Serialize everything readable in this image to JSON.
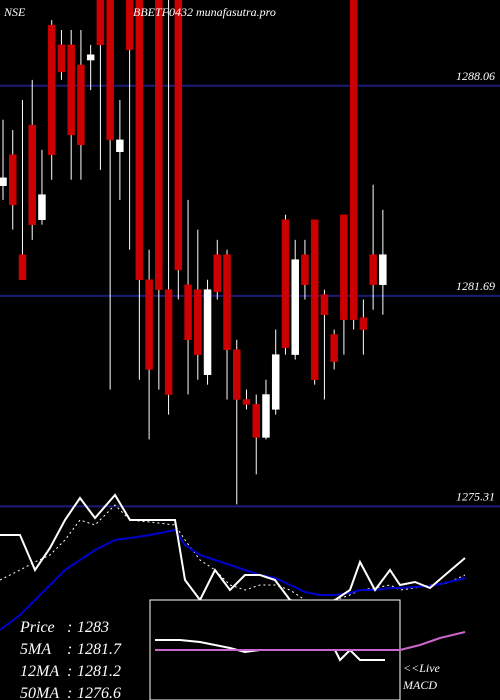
{
  "chart_data": [
    {
      "type": "candlestick",
      "exchange": "NSE",
      "title": "BBETF0432 munafasutra.pro",
      "ylim": [
        1275.2,
        1290.66
      ],
      "yticks": [
        1288.06,
        1281.69,
        1275.31
      ],
      "grid": true,
      "up_color": "#ffffff",
      "down_color": "#cc0000",
      "grid_color": "#1c1c78",
      "open": [
        1285.03,
        1285.97,
        1282.94,
        1286.87,
        1284.0,
        1289.9,
        1289.3,
        1289.3,
        1288.69,
        1288.84,
        1290.66,
        1290.66,
        1286.06,
        1290.66,
        1290.66,
        1282.18,
        1290.66,
        1281.88,
        1290.66,
        1282.03,
        1281.88,
        1279.3,
        1282.94,
        1282.94,
        1280.06,
        1278.55,
        1278.4,
        1277.4,
        1278.25,
        1284.0,
        1279.91,
        1282.94,
        1284.0,
        1281.73,
        1280.52,
        1284.15,
        1290.66,
        1281.03,
        1282.94,
        1282.03
      ],
      "high": [
        1287.03,
        1286.72,
        1287.63,
        1288.24,
        1286.12,
        1290.05,
        1289.75,
        1289.75,
        1289.75,
        1289.3,
        1290.66,
        1290.66,
        1287.63,
        1290.66,
        1290.66,
        1283.09,
        1290.66,
        1290.66,
        1290.66,
        1284.6,
        1283.7,
        1282.18,
        1283.39,
        1283.09,
        1280.36,
        1278.85,
        1278.7,
        1279.15,
        1280.67,
        1284.15,
        1283.39,
        1283.39,
        1284.0,
        1281.88,
        1280.67,
        1284.15,
        1290.66,
        1281.58,
        1285.06,
        1284.3
      ],
      "low": [
        1284.6,
        1283.7,
        1282.18,
        1283.39,
        1283.85,
        1285.21,
        1288.24,
        1285.21,
        1285.21,
        1287.93,
        1285.51,
        1278.85,
        1284.6,
        1283.09,
        1279.15,
        1277.34,
        1278.85,
        1278.09,
        1281.58,
        1278.7,
        1279.15,
        1279.0,
        1281.58,
        1278.55,
        1275.37,
        1278.25,
        1276.28,
        1277.34,
        1278.09,
        1279.91,
        1279.76,
        1281.58,
        1279.0,
        1278.55,
        1279.46,
        1279.91,
        1280.67,
        1279.91,
        1281.27,
        1281.12
      ],
      "close": [
        1285.27,
        1284.45,
        1282.18,
        1283.85,
        1284.76,
        1285.97,
        1288.48,
        1286.57,
        1286.27,
        1289.0,
        1289.3,
        1286.42,
        1286.42,
        1289.15,
        1282.18,
        1279.46,
        1281.88,
        1278.7,
        1282.48,
        1280.36,
        1279.91,
        1281.88,
        1281.82,
        1280.06,
        1278.55,
        1278.4,
        1277.4,
        1278.7,
        1279.91,
        1280.12,
        1282.79,
        1282.03,
        1279.15,
        1281.12,
        1279.7,
        1280.97,
        1280.97,
        1280.67,
        1282.03,
        1282.94
      ]
    },
    {
      "type": "line",
      "xlim": [
        0,
        500
      ],
      "ylim": [
        0,
        210
      ],
      "x": [
        0,
        20,
        35,
        50,
        65,
        80,
        95,
        115,
        130,
        150,
        175,
        185,
        200,
        215,
        230,
        245,
        260,
        275,
        290,
        305,
        320,
        335,
        350,
        360,
        375,
        390,
        400,
        415,
        430,
        445,
        465
      ],
      "series": [
        {
          "color": "#ffffff",
          "style": "dotted",
          "values": [
            120,
            130,
            138,
            145,
            160,
            180,
            175,
            195,
            180,
            178,
            175,
            160,
            140,
            130,
            115,
            110,
            115,
            115,
            110,
            100,
            100,
            100,
            105,
            110,
            112,
            115,
            110,
            112,
            115,
            116,
            125
          ]
        },
        {
          "color": "#0000cc",
          "style": "solid",
          "values": [
            70,
            85,
            100,
            115,
            130,
            140,
            150,
            160,
            162,
            165,
            170,
            155,
            145,
            140,
            135,
            130,
            125,
            122,
            115,
            108,
            105,
            105,
            107,
            110,
            110,
            112,
            112,
            113,
            114,
            117,
            122
          ]
        },
        {
          "color": "#ffffff",
          "style": "solid",
          "values": [
            165,
            165,
            130,
            152,
            180,
            202,
            182,
            205,
            180,
            180,
            180,
            120,
            100,
            130,
            110,
            125,
            125,
            120,
            100,
            95,
            95,
            100,
            110,
            138,
            110,
            130,
            115,
            118,
            112,
            125,
            142
          ]
        }
      ]
    },
    {
      "type": "macd",
      "xlim": [
        0,
        500
      ],
      "ylim": [
        0,
        210
      ],
      "legend": [
        "<<Live",
        "MACD"
      ],
      "series": [
        {
          "color": "#ffffff",
          "x": [
            155,
            180,
            200,
            215,
            230,
            245,
            260,
            275,
            290,
            305,
            320,
            335,
            340,
            350,
            360,
            385
          ],
          "values": [
            60,
            60,
            58,
            55,
            52,
            48,
            50,
            50,
            50,
            50,
            50,
            50,
            40,
            50,
            40,
            40
          ]
        },
        {
          "color": "#cc66cc",
          "x": [
            155,
            400,
            420,
            440,
            465
          ],
          "values": [
            50,
            50,
            55,
            62,
            68
          ]
        }
      ]
    }
  ],
  "stats": [
    {
      "label": "Price",
      "sep": ":",
      "value": 1283
    },
    {
      "label": "5MA",
      "sep": ":",
      "value": 1281.7
    },
    {
      "label": "12MA",
      "sep": ":",
      "value": 1281.2
    },
    {
      "label": "50MA",
      "sep": ":",
      "value": 1276.6
    }
  ]
}
